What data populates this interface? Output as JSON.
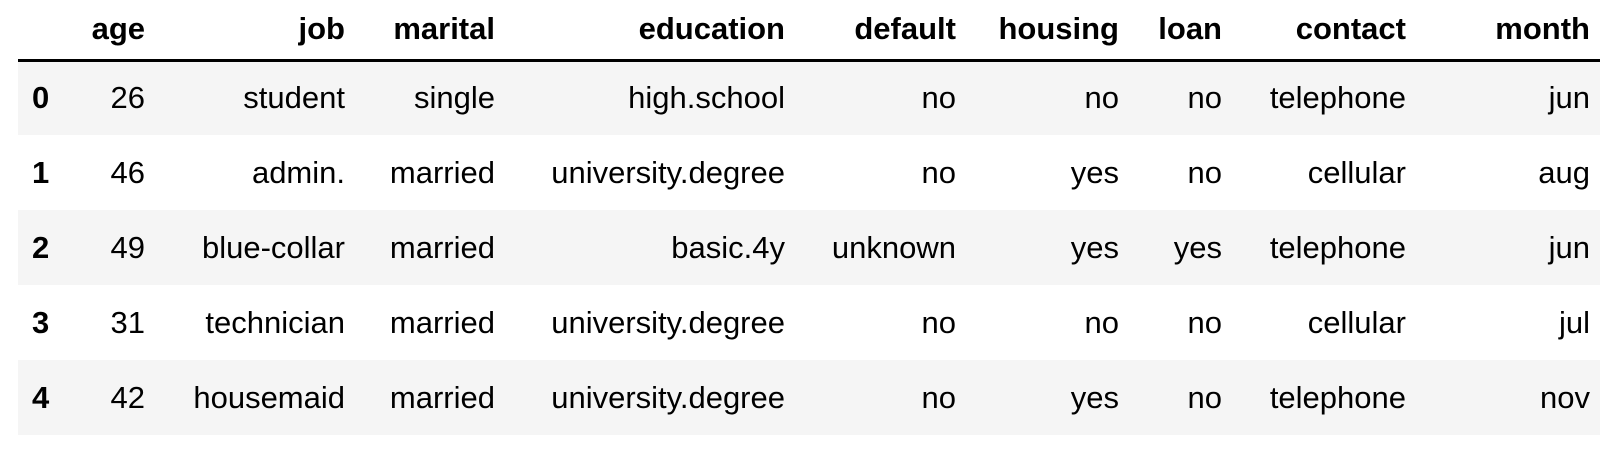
{
  "table": {
    "columns": [
      "",
      "age",
      "job",
      "marital",
      "education",
      "default",
      "housing",
      "loan",
      "contact",
      "month"
    ],
    "rows": [
      {
        "index": "0",
        "cells": [
          "26",
          "student",
          "single",
          "high.school",
          "no",
          "no",
          "no",
          "telephone",
          "jun"
        ]
      },
      {
        "index": "1",
        "cells": [
          "46",
          "admin.",
          "married",
          "university.degree",
          "no",
          "yes",
          "no",
          "cellular",
          "aug"
        ]
      },
      {
        "index": "2",
        "cells": [
          "49",
          "blue-collar",
          "married",
          "basic.4y",
          "unknown",
          "yes",
          "yes",
          "telephone",
          "jun"
        ]
      },
      {
        "index": "3",
        "cells": [
          "31",
          "technician",
          "married",
          "university.degree",
          "no",
          "no",
          "no",
          "cellular",
          "jul"
        ]
      },
      {
        "index": "4",
        "cells": [
          "42",
          "housemaid",
          "married",
          "university.degree",
          "no",
          "yes",
          "no",
          "telephone",
          "nov"
        ]
      }
    ]
  }
}
